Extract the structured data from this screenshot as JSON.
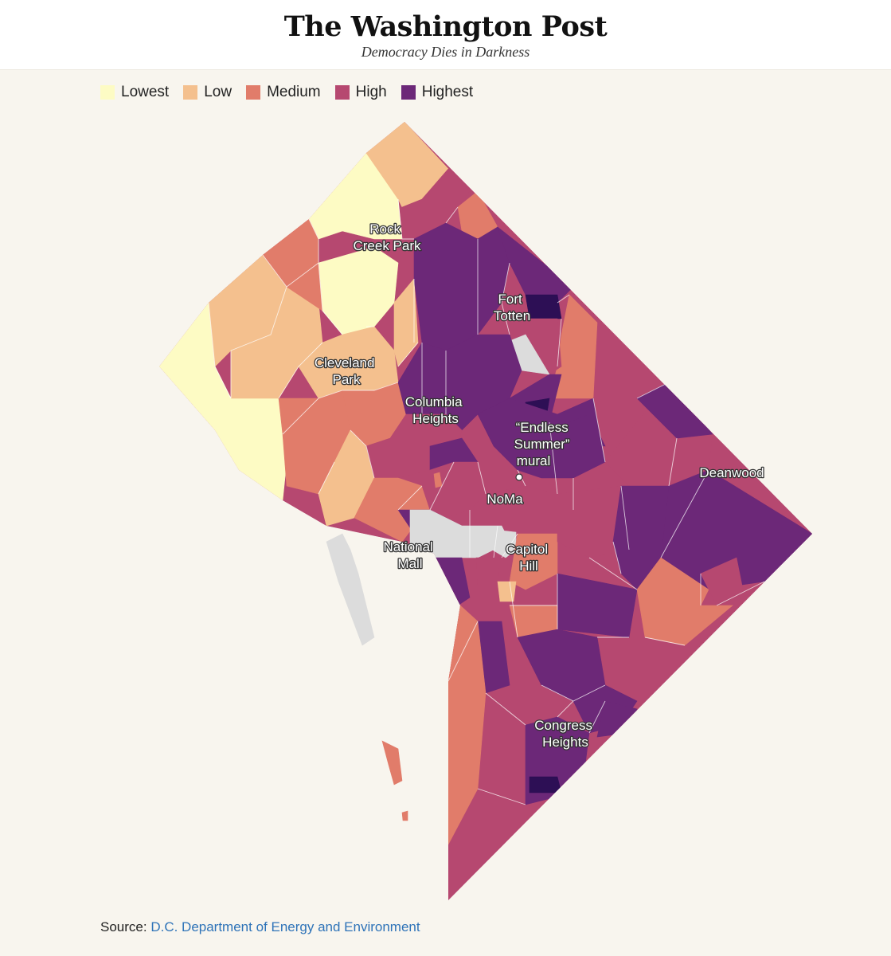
{
  "header": {
    "masthead": "The Washington Post",
    "tagline": "Democracy Dies in Darkness"
  },
  "legend": [
    {
      "label": "Lowest",
      "color": "#fdfbc4"
    },
    {
      "label": "Low",
      "color": "#f4c08e"
    },
    {
      "label": "Medium",
      "color": "#e17c6a"
    },
    {
      "label": "High",
      "color": "#b64870"
    },
    {
      "label": "Highest",
      "color": "#6c2878"
    }
  ],
  "colors": {
    "darkest": "#2d0f55",
    "excluded": "#dcdcdc",
    "boundary": "#ffffff",
    "label_text": "#ffffff",
    "label_outline": "#333333"
  },
  "map_labels": [
    {
      "id": "rock-creek-park",
      "lines": [
        "Rock",
        "Creek Park"
      ]
    },
    {
      "id": "fort-totten",
      "lines": [
        "Fort",
        "Totten"
      ]
    },
    {
      "id": "cleveland-park",
      "lines": [
        "Cleveland",
        "Park"
      ]
    },
    {
      "id": "columbia-heights",
      "lines": [
        "Columbia",
        "Heights"
      ]
    },
    {
      "id": "endless-summer-mural",
      "lines": [
        "“Endless",
        "Summer”",
        "mural"
      ]
    },
    {
      "id": "deanwood",
      "lines": [
        "Deanwood"
      ]
    },
    {
      "id": "noma",
      "lines": [
        "NoMa"
      ]
    },
    {
      "id": "national-mall",
      "lines": [
        "National",
        "Mall"
      ]
    },
    {
      "id": "capitol-hill",
      "lines": [
        "Capitol",
        "Hill"
      ]
    },
    {
      "id": "congress-heights",
      "lines": [
        "Congress",
        "Heights"
      ]
    }
  ],
  "source": {
    "prefix": "Source: ",
    "link_text": "D.C. Department of Energy and Environment"
  }
}
